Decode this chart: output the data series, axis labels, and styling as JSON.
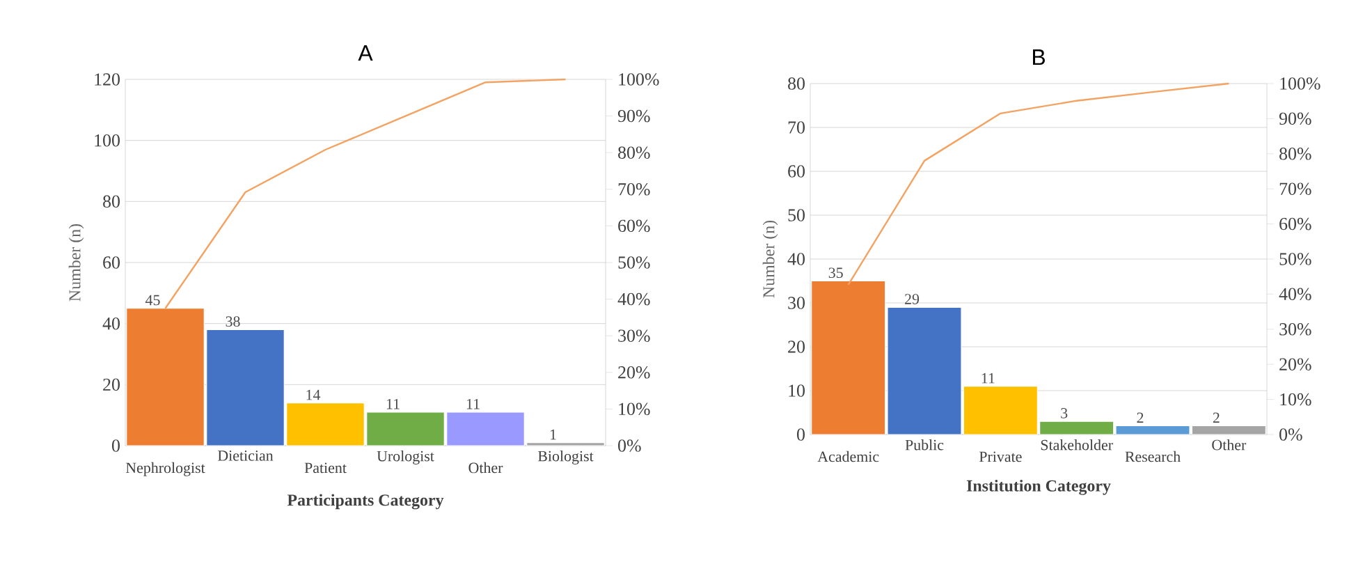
{
  "chart_data": [
    {
      "type": "bar",
      "title": "A",
      "xlabel": "Participants Category",
      "ylabel": "Number (n)",
      "categories": [
        "Nephrologist",
        "Dietician",
        "Patient",
        "Urologist",
        "Other",
        "Biologist"
      ],
      "ylim": [
        0,
        120
      ],
      "yticks": [
        0,
        20,
        40,
        60,
        80,
        100,
        120
      ],
      "y2lim": [
        0,
        100
      ],
      "y2ticks": [
        {
          "value": 0,
          "label": "0%"
        },
        {
          "value": 10,
          "label": "10%"
        },
        {
          "value": 20,
          "label": "20%"
        },
        {
          "value": 30,
          "label": "30%"
        },
        {
          "value": 40,
          "label": "40%"
        },
        {
          "value": 50,
          "label": "50%"
        },
        {
          "value": 60,
          "label": "60%"
        },
        {
          "value": 70,
          "label": "70%"
        },
        {
          "value": 80,
          "label": "80%"
        },
        {
          "value": 90,
          "label": "90%"
        },
        {
          "value": 100,
          "label": "100%"
        }
      ],
      "grid": "y",
      "series": [
        {
          "type": "bar",
          "colors": [
            "#ed7d31",
            "#4472c4",
            "#ffc000",
            "#70ad47",
            "#9999ff",
            "#a5a5a5"
          ],
          "values": [
            45,
            38,
            14,
            11,
            11,
            1
          ],
          "value_labels": [
            "45",
            "38",
            "14",
            "11",
            "11",
            "1"
          ]
        },
        {
          "type": "line",
          "axis": "y2",
          "color": "#f4a261",
          "values": [
            37.5,
            69.2,
            80.8,
            90,
            99.2,
            100
          ]
        }
      ]
    },
    {
      "type": "bar",
      "title": "B",
      "xlabel": "Institution Category",
      "ylabel": "Number (n)",
      "categories": [
        "Academic",
        "Public",
        "Private",
        "Stakeholder",
        "Research",
        "Other"
      ],
      "ylim": [
        0,
        80
      ],
      "yticks": [
        0,
        10,
        20,
        30,
        40,
        50,
        60,
        70,
        80
      ],
      "y2lim": [
        0,
        100
      ],
      "y2ticks": [
        {
          "value": 0,
          "label": "0%"
        },
        {
          "value": 10,
          "label": "10%"
        },
        {
          "value": 20,
          "label": "20%"
        },
        {
          "value": 30,
          "label": "30%"
        },
        {
          "value": 40,
          "label": "40%"
        },
        {
          "value": 50,
          "label": "50%"
        },
        {
          "value": 60,
          "label": "60%"
        },
        {
          "value": 70,
          "label": "70%"
        },
        {
          "value": 80,
          "label": "80%"
        },
        {
          "value": 90,
          "label": "90%"
        },
        {
          "value": 100,
          "label": "100%"
        }
      ],
      "grid": "y",
      "series": [
        {
          "type": "bar",
          "colors": [
            "#ed7d31",
            "#4472c4",
            "#ffc000",
            "#70ad47",
            "#5b9bd5",
            "#a5a5a5"
          ],
          "values": [
            35,
            29,
            11,
            3,
            2,
            2
          ],
          "value_labels": [
            "35",
            "29",
            "11",
            "3",
            "2",
            "2"
          ]
        },
        {
          "type": "line",
          "axis": "y2",
          "color": "#f4a261",
          "values": [
            42.7,
            78,
            91.5,
            95.1,
            97.6,
            100
          ]
        }
      ]
    }
  ]
}
